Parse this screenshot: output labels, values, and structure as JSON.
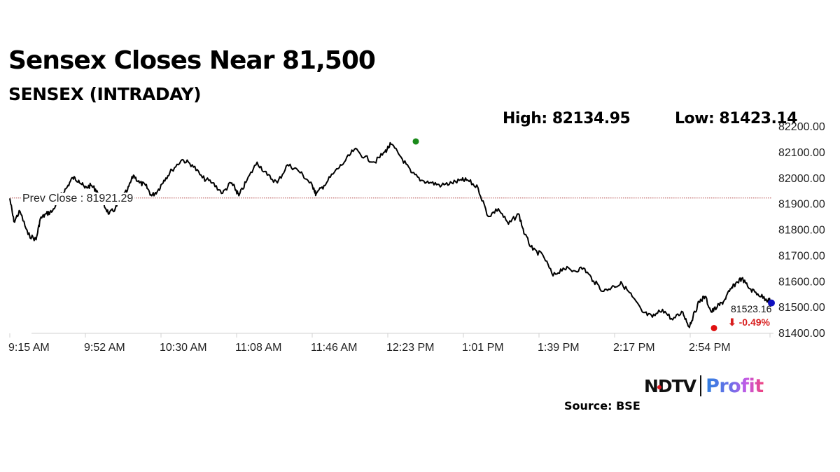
{
  "header": {
    "title": "Sensex Closes Near 81,500",
    "subtitle": "SENSEX (INTRADAY)"
  },
  "stats": {
    "high_label": "High: 82134.95",
    "low_label": "Low: 81423.14"
  },
  "annotations": {
    "prev_close_label": "Prev Close : 81921.29",
    "last_value": "81523.16",
    "change": "⬇ -0.49%"
  },
  "footer": {
    "logo_ndtv": "NDTV",
    "logo_profit": "Profit",
    "source": "Source: BSE"
  },
  "colors": {
    "line": "#000000",
    "prev_close": "#b04040",
    "high_marker": "#1a8a1a",
    "low_marker": "#e01010",
    "last_marker": "#1010c0",
    "change_text": "#d81e1e",
    "axis": "#d0d0d0"
  },
  "chart_data": {
    "type": "line",
    "title": "Sensex Closes Near 81,500",
    "subtitle": "SENSEX (INTRADAY)",
    "xlabel": "",
    "ylabel": "",
    "ylim": [
      81400,
      82200
    ],
    "y_ticks": [
      "82200.00",
      "82100.00",
      "82000.00",
      "81900.00",
      "81800.00",
      "81700.00",
      "81600.00",
      "81500.00",
      "81400.00"
    ],
    "x_ticks": [
      "9:15 AM",
      "9:52 AM",
      "10:30 AM",
      "11:08 AM",
      "11:46 AM",
      "12:23 PM",
      "1:01 PM",
      "1:39 PM",
      "2:17 PM",
      "2:54 PM"
    ],
    "grid": false,
    "legend": "none",
    "prev_close": 81921.29,
    "high": 82134.95,
    "low": 81423.14,
    "last": 81523.16,
    "change_pct": -0.49,
    "series": [
      {
        "name": "SENSEX",
        "x": [
          "9:15",
          "9:17",
          "9:20",
          "9:24",
          "9:28",
          "9:30",
          "9:33",
          "9:36",
          "9:40",
          "9:43",
          "9:46",
          "9:49",
          "9:52",
          "9:55",
          "9:58",
          "10:01",
          "10:04",
          "10:07",
          "10:10",
          "10:13",
          "10:16",
          "10:19",
          "10:22",
          "10:25",
          "10:28",
          "10:31",
          "10:35",
          "10:40",
          "10:45",
          "10:50",
          "10:55",
          "11:00",
          "11:04",
          "11:06",
          "11:08",
          "11:12",
          "11:17",
          "11:22",
          "11:27",
          "11:32",
          "11:37",
          "11:42",
          "11:45",
          "11:46",
          "11:50",
          "11:55",
          "12:00",
          "12:05",
          "12:10",
          "12:15",
          "12:20",
          "12:23",
          "12:28",
          "12:33",
          "12:38",
          "12:43",
          "12:48",
          "12:53",
          "12:58",
          "13:01",
          "13:06",
          "13:11",
          "13:16",
          "13:21",
          "13:26",
          "13:29",
          "13:33",
          "13:38",
          "13:43",
          "13:48",
          "13:53",
          "13:58",
          "14:03",
          "14:08",
          "14:13",
          "14:17",
          "14:22",
          "14:27",
          "14:32",
          "14:37",
          "14:42",
          "14:47",
          "14:50",
          "14:52",
          "14:55",
          "14:58",
          "15:01",
          "15:04",
          "15:07",
          "15:10",
          "15:13",
          "15:16",
          "15:20",
          "15:24",
          "15:28",
          "15:30"
        ],
        "values": [
          81920,
          81830,
          81870,
          81780,
          81760,
          81840,
          81860,
          81870,
          81930,
          81960,
          82000,
          81990,
          81960,
          81970,
          81950,
          81900,
          81860,
          81880,
          81920,
          81950,
          82010,
          81980,
          81970,
          81930,
          81950,
          81990,
          82030,
          82070,
          82050,
          82000,
          81980,
          81940,
          81980,
          81960,
          81930,
          81990,
          82060,
          82010,
          81980,
          82050,
          82030,
          81990,
          81960,
          81935,
          81970,
          82020,
          82060,
          82110,
          82080,
          82060,
          82100,
          82130,
          82080,
          82020,
          81990,
          81980,
          81970,
          81980,
          81990,
          81990,
          81960,
          81850,
          81880,
          81820,
          81860,
          81780,
          81720,
          81700,
          81620,
          81650,
          81640,
          81650,
          81600,
          81560,
          81580,
          81590,
          81540,
          81480,
          81460,
          81490,
          81450,
          81480,
          81423,
          81460,
          81520,
          81540,
          81480,
          81500,
          81520,
          81560,
          81590,
          81610,
          81570,
          81550,
          81530,
          81523
        ]
      }
    ]
  }
}
